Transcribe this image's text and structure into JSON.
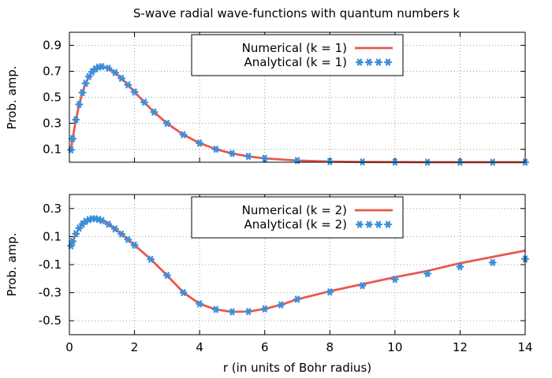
{
  "chart_data": [
    {
      "type": "line",
      "title": "S-wave radial wave-functions with quantum numbers k",
      "xlabel": "",
      "ylabel": "Prob. amp.",
      "xlim": [
        0,
        14
      ],
      "ylim": [
        0,
        1.0
      ],
      "xticks": [
        0,
        2,
        4,
        6,
        8,
        10,
        12,
        14
      ],
      "yticks": [
        "0.1",
        "0.3",
        "0.5",
        "0.7",
        "0.9"
      ],
      "grid": true,
      "legend_position": "top-center",
      "series": [
        {
          "name": "Numerical (k = 1)",
          "style": "line",
          "color": "#e8584e",
          "x": [
            0.05,
            0.1,
            0.2,
            0.3,
            0.4,
            0.5,
            0.6,
            0.7,
            0.8,
            0.9,
            1.0,
            1.2,
            1.4,
            1.6,
            1.8,
            2.0,
            2.3,
            2.6,
            3.0,
            3.5,
            4.0,
            4.5,
            5.0,
            5.5,
            6.0,
            7.0,
            8.0,
            9.0,
            10.0,
            11.0,
            12.0,
            13.0,
            14.0
          ],
          "y": [
            0.095,
            0.181,
            0.327,
            0.445,
            0.536,
            0.607,
            0.659,
            0.695,
            0.719,
            0.732,
            0.736,
            0.723,
            0.69,
            0.646,
            0.595,
            0.541,
            0.462,
            0.386,
            0.299,
            0.212,
            0.147,
            0.1,
            0.067,
            0.045,
            0.03,
            0.013,
            0.005,
            0.002,
            0.001,
            0.0,
            0.0,
            0.0,
            0.0
          ]
        },
        {
          "name": "Analytical (k = 1)",
          "style": "points",
          "color": "#3b8fd9",
          "x": [
            0.05,
            0.1,
            0.2,
            0.3,
            0.4,
            0.5,
            0.6,
            0.7,
            0.8,
            0.9,
            1.0,
            1.2,
            1.4,
            1.6,
            1.8,
            2.0,
            2.3,
            2.6,
            3.0,
            3.5,
            4.0,
            4.5,
            5.0,
            5.5,
            6.0,
            7.0,
            8.0,
            9.0,
            10.0,
            11.0,
            12.0,
            13.0,
            14.0
          ],
          "y": [
            0.095,
            0.181,
            0.327,
            0.445,
            0.536,
            0.607,
            0.659,
            0.695,
            0.719,
            0.732,
            0.736,
            0.723,
            0.69,
            0.646,
            0.595,
            0.541,
            0.462,
            0.386,
            0.299,
            0.212,
            0.147,
            0.1,
            0.067,
            0.045,
            0.03,
            0.013,
            0.005,
            0.002,
            0.001,
            0.0,
            0.0,
            0.0,
            0.0
          ]
        }
      ]
    },
    {
      "type": "line",
      "title": "",
      "xlabel": "r (in units of Bohr radius)",
      "ylabel": "Prob. amp.",
      "xlim": [
        0,
        14
      ],
      "ylim": [
        -0.6,
        0.4
      ],
      "xticks": [
        0,
        2,
        4,
        6,
        8,
        10,
        12,
        14
      ],
      "yticks": [
        "0.3",
        "0.1",
        "-0.1",
        "-0.3",
        "-0.5"
      ],
      "grid": true,
      "legend_position": "top-center",
      "series": [
        {
          "name": "Numerical (k = 2)",
          "style": "line",
          "color": "#e8584e",
          "x": [
            0.05,
            0.1,
            0.2,
            0.3,
            0.4,
            0.5,
            0.6,
            0.7,
            0.8,
            0.9,
            1.0,
            1.2,
            1.4,
            1.6,
            1.8,
            2.0,
            2.5,
            3.0,
            3.5,
            4.0,
            4.5,
            5.0,
            5.5,
            6.0,
            6.5,
            7.0,
            8.0,
            9.0,
            10.0,
            11.0,
            12.0,
            13.0,
            14.0
          ],
          "y": [
            0.034,
            0.066,
            0.12,
            0.16,
            0.189,
            0.209,
            0.221,
            0.227,
            0.227,
            0.222,
            0.214,
            0.188,
            0.155,
            0.118,
            0.079,
            0.039,
            -0.062,
            -0.177,
            -0.299,
            -0.38,
            -0.42,
            -0.437,
            -0.435,
            -0.416,
            -0.387,
            -0.347,
            -0.29,
            -0.24,
            -0.19,
            -0.145,
            -0.09,
            -0.045,
            0.0
          ]
        },
        {
          "name": "Analytical (k = 2)",
          "style": "points",
          "color": "#3b8fd9",
          "x": [
            0.05,
            0.1,
            0.2,
            0.3,
            0.4,
            0.5,
            0.6,
            0.7,
            0.8,
            0.9,
            1.0,
            1.2,
            1.4,
            1.6,
            1.8,
            2.0,
            2.5,
            3.0,
            3.5,
            4.0,
            4.5,
            5.0,
            5.5,
            6.0,
            6.5,
            7.0,
            8.0,
            9.0,
            10.0,
            11.0,
            12.0,
            13.0,
            14.0
          ],
          "y": [
            0.034,
            0.066,
            0.12,
            0.16,
            0.189,
            0.209,
            0.221,
            0.227,
            0.227,
            0.222,
            0.214,
            0.188,
            0.155,
            0.118,
            0.079,
            0.039,
            -0.062,
            -0.177,
            -0.299,
            -0.38,
            -0.42,
            -0.437,
            -0.435,
            -0.416,
            -0.387,
            -0.347,
            -0.295,
            -0.25,
            -0.205,
            -0.165,
            -0.115,
            -0.085,
            -0.06
          ]
        }
      ]
    }
  ]
}
